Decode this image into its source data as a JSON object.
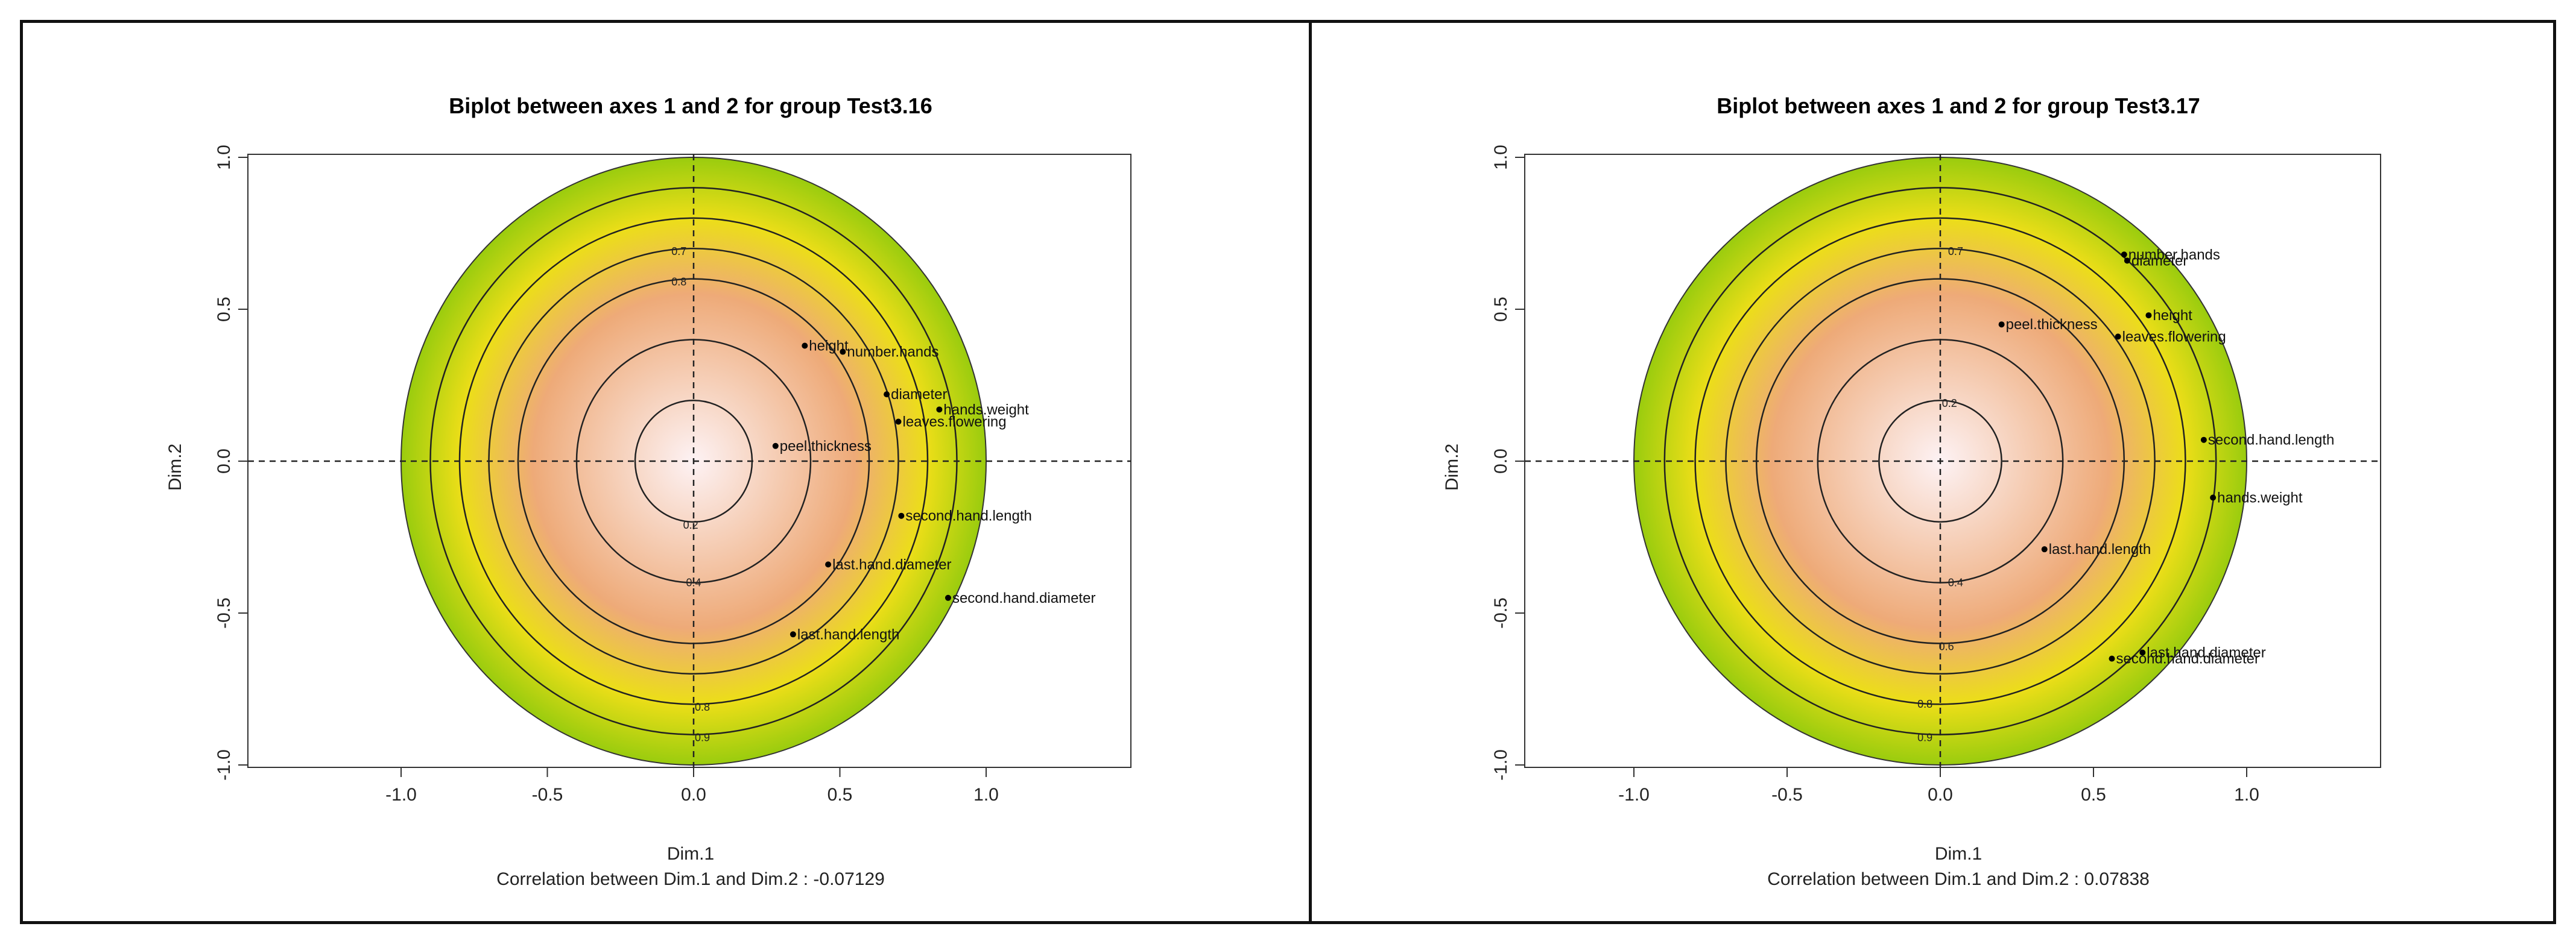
{
  "chart_data": [
    {
      "type": "scatter",
      "title": "Biplot between axes 1 and 2 for group Test3.16",
      "xlabel": "Dim.1",
      "ylabel": "Dim.2",
      "subtitle": "Correlation between Dim.1 and Dim.2 : -0.07129",
      "xlim": [
        -1.0,
        1.0
      ],
      "ylim": [
        -1.0,
        1.0
      ],
      "x_ticks": [
        "-1.0",
        "-0.5",
        "0.0",
        "0.5",
        "1.0"
      ],
      "y_ticks": [
        "-1.0",
        "-0.5",
        "0.0",
        "0.5",
        "1.0"
      ],
      "contour_levels": [
        "0.2",
        "0.4",
        "0.6",
        "0.7",
        "0.8",
        "0.9"
      ],
      "contour_labels": [
        {
          "text": "0.2",
          "x": -0.01,
          "y": -0.21
        },
        {
          "text": "0.4",
          "x": 0.0,
          "y": -0.4
        },
        {
          "text": "0.7",
          "x": -0.05,
          "y": 0.69
        },
        {
          "text": "0.8",
          "x": -0.05,
          "y": 0.59
        },
        {
          "text": "0.8",
          "x": 0.03,
          "y": -0.81
        },
        {
          "text": "0.9",
          "x": 0.03,
          "y": -0.91
        }
      ],
      "points": [
        {
          "label": "height",
          "x": 0.38,
          "y": 0.38
        },
        {
          "label": "number.hands",
          "x": 0.51,
          "y": 0.36
        },
        {
          "label": "diameter",
          "x": 0.66,
          "y": 0.22
        },
        {
          "label": "hands.weight",
          "x": 0.84,
          "y": 0.17
        },
        {
          "label": "leaves.flowering",
          "x": 0.7,
          "y": 0.13
        },
        {
          "label": "peel.thickness",
          "x": 0.28,
          "y": 0.05
        },
        {
          "label": "second.hand.length",
          "x": 0.71,
          "y": -0.18
        },
        {
          "label": "last.hand.diameter",
          "x": 0.46,
          "y": -0.34
        },
        {
          "label": "second.hand.diameter",
          "x": 0.87,
          "y": -0.45
        },
        {
          "label": "last.hand.length",
          "x": 0.34,
          "y": -0.57
        }
      ],
      "colors": {
        "outer": "#9acc0e",
        "middle": "#ecde18",
        "inner": "#eeaa78",
        "center": "#fdf2f4"
      }
    },
    {
      "type": "scatter",
      "title": "Biplot between axes 1 and 2 for group Test3.17",
      "xlabel": "Dim.1",
      "ylabel": "Dim.2",
      "subtitle": "Correlation between Dim.1 and Dim.2 : 0.07838",
      "xlim": [
        -1.0,
        1.0
      ],
      "ylim": [
        -1.0,
        1.0
      ],
      "x_ticks": [
        "-1.0",
        "-0.5",
        "0.0",
        "0.5",
        "1.0"
      ],
      "y_ticks": [
        "-1.0",
        "-0.5",
        "0.0",
        "0.5",
        "1.0"
      ],
      "contour_levels": [
        "0.2",
        "0.4",
        "0.6",
        "0.7",
        "0.8",
        "0.9"
      ],
      "contour_labels": [
        {
          "text": "0.2",
          "x": 0.03,
          "y": 0.19
        },
        {
          "text": "0.4",
          "x": 0.05,
          "y": -0.4
        },
        {
          "text": "0.6",
          "x": 0.02,
          "y": -0.61
        },
        {
          "text": "0.7",
          "x": 0.05,
          "y": 0.69
        },
        {
          "text": "0.8",
          "x": -0.05,
          "y": -0.8
        },
        {
          "text": "0.9",
          "x": -0.05,
          "y": -0.91
        }
      ],
      "points": [
        {
          "label": "number.hands",
          "x": 0.6,
          "y": 0.68
        },
        {
          "label": "diameter",
          "x": 0.61,
          "y": 0.66
        },
        {
          "label": "height",
          "x": 0.68,
          "y": 0.48
        },
        {
          "label": "peel.thickness",
          "x": 0.2,
          "y": 0.45
        },
        {
          "label": "leaves.flowering",
          "x": 0.58,
          "y": 0.41
        },
        {
          "label": "second.hand.length",
          "x": 0.86,
          "y": 0.07
        },
        {
          "label": "hands.weight",
          "x": 0.89,
          "y": -0.12
        },
        {
          "label": "last.hand.length",
          "x": 0.34,
          "y": -0.29
        },
        {
          "label": "last.hand.diameter",
          "x": 0.66,
          "y": -0.63
        },
        {
          "label": "second.hand.diameter",
          "x": 0.56,
          "y": -0.65
        }
      ],
      "colors": {
        "outer": "#9acc0e",
        "middle": "#ecde18",
        "inner": "#eeaa78",
        "center": "#fdf2f4"
      }
    }
  ]
}
